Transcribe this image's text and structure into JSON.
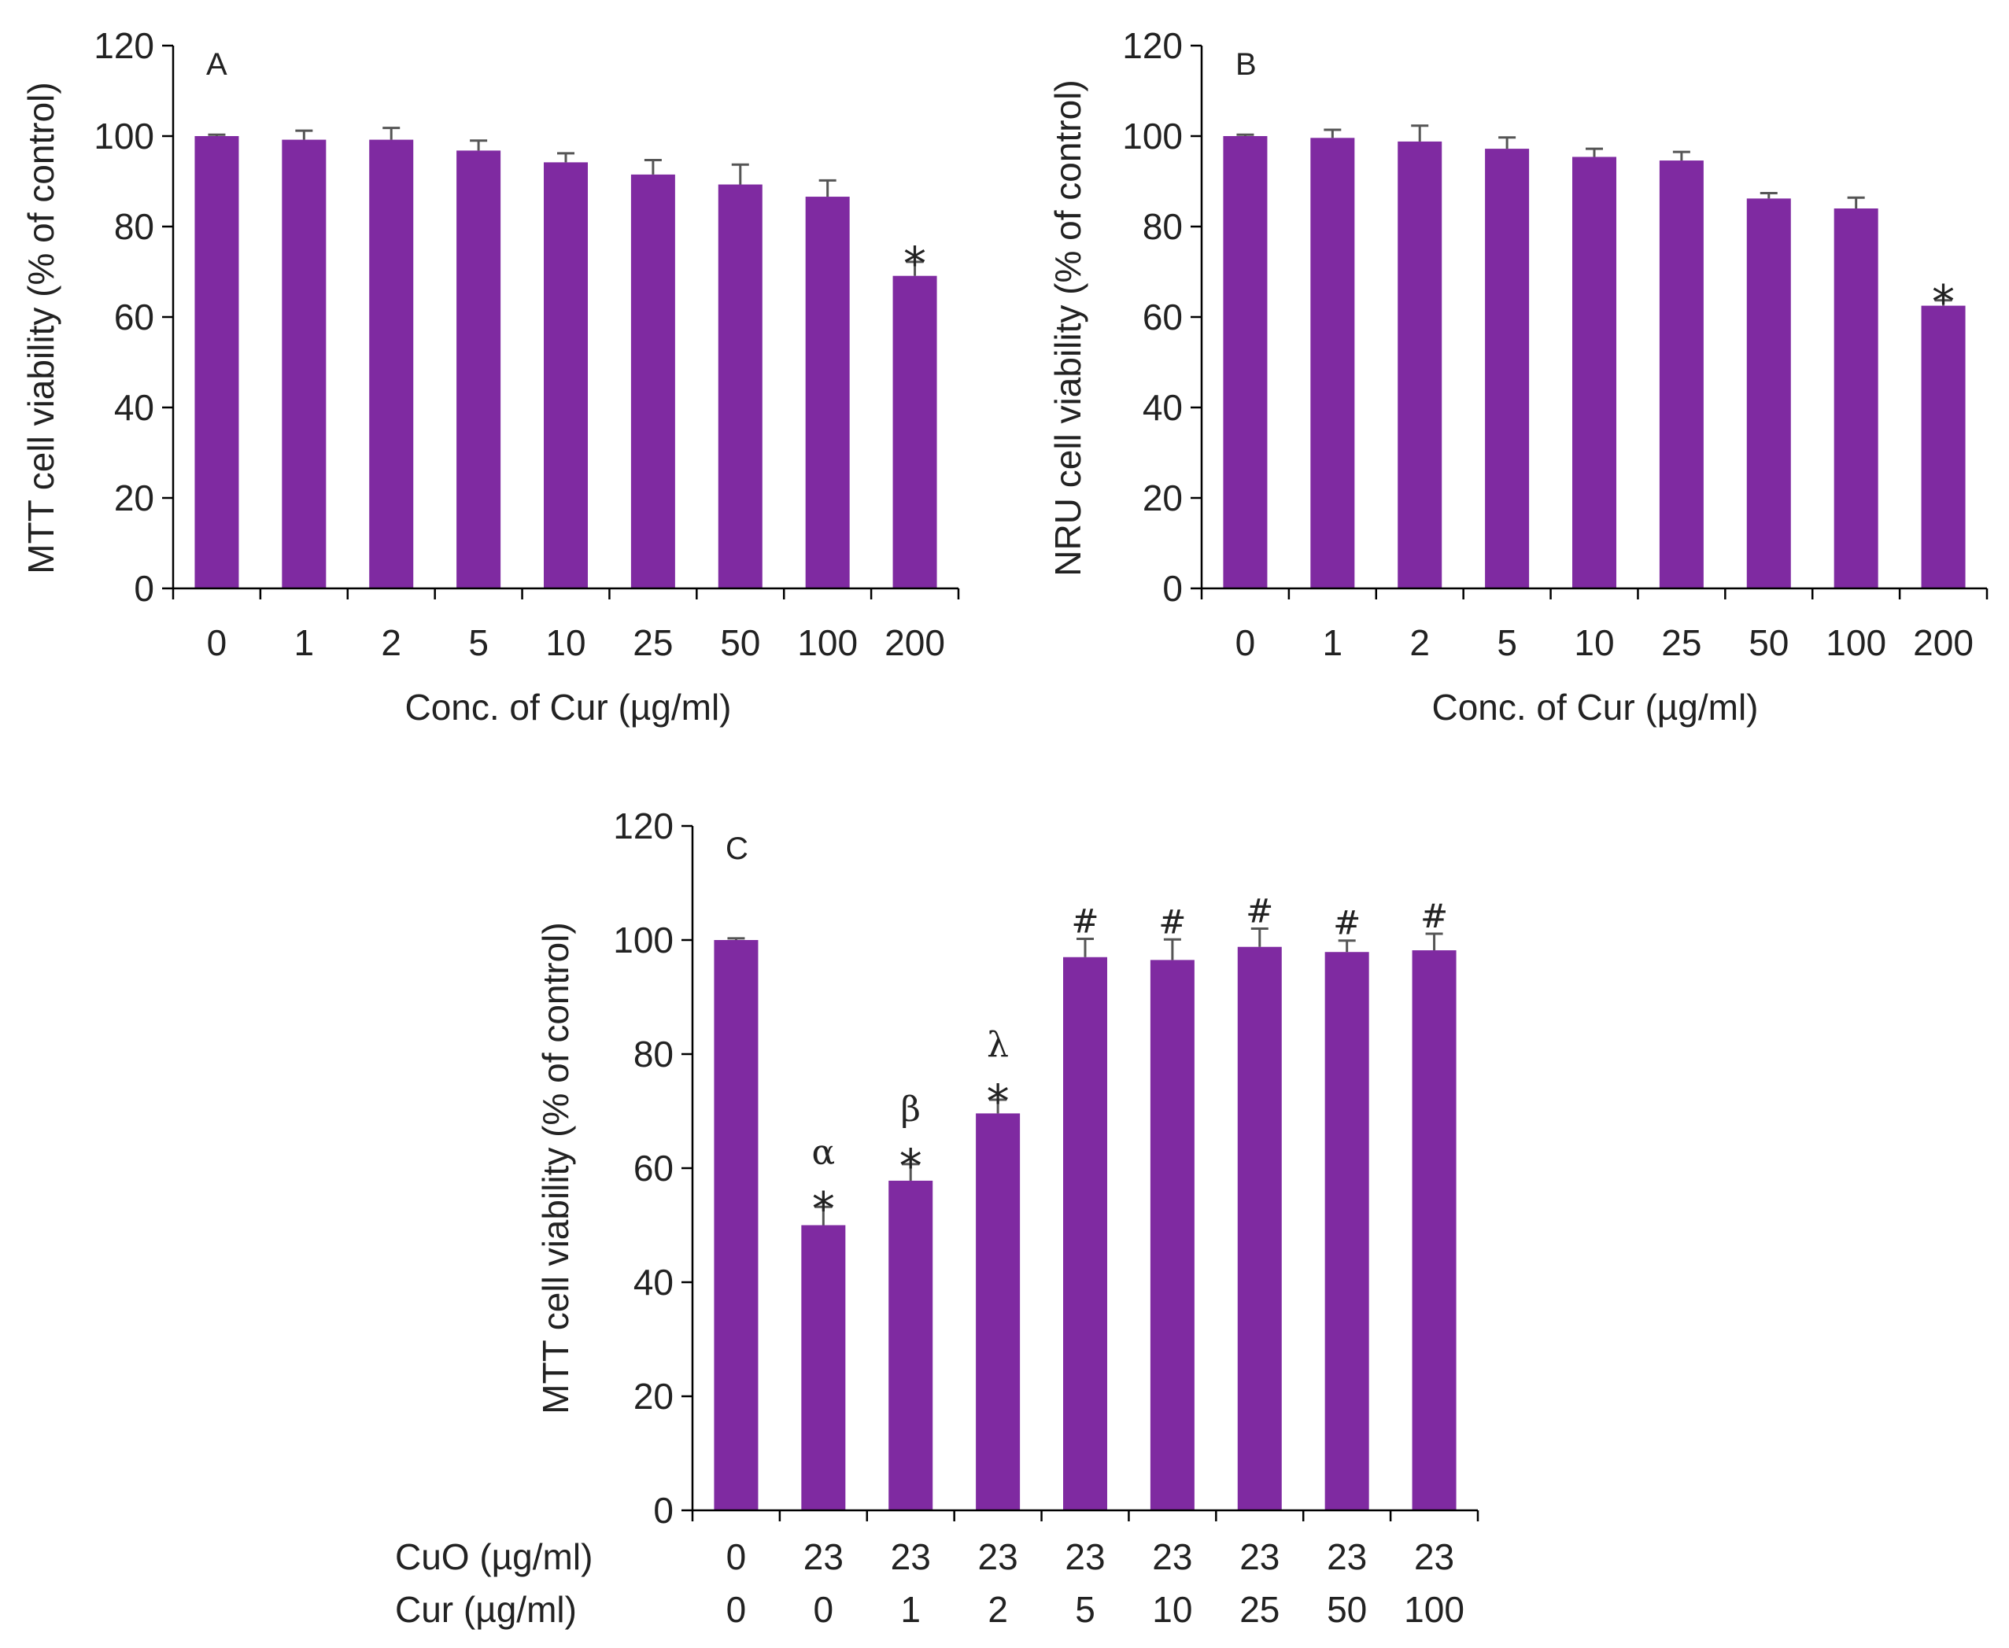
{
  "colors": {
    "bar": "#7f2aa1",
    "axis": "#000000",
    "error_bar": "#555555",
    "text": "#222222"
  },
  "chart_data": [
    {
      "panel": "A",
      "type": "bar",
      "xlabel": "Conc. of Cur (µg/ml)",
      "ylabel": "MTT cell viability (% of control)",
      "ylim": [
        0,
        120
      ],
      "yticks": [
        "0",
        "20",
        "40",
        "60",
        "80",
        "100",
        "120"
      ],
      "categories": [
        "0",
        "1",
        "2",
        "5",
        "10",
        "25",
        "50",
        "100",
        "200"
      ],
      "values": [
        100,
        99.2,
        99.2,
        96.8,
        94.2,
        91.5,
        89.3,
        86.6,
        69.1
      ],
      "errors": [
        0.3,
        2.0,
        2.6,
        2.2,
        2.0,
        3.2,
        4.4,
        3.6,
        3.1
      ],
      "markers": [
        "",
        "",
        "",
        "",
        "",
        "",
        "",
        "",
        "*"
      ]
    },
    {
      "panel": "B",
      "type": "bar",
      "xlabel": "Conc. of Cur (µg/ml)",
      "ylabel": "NRU cell viability (% of control)",
      "ylim": [
        0,
        120
      ],
      "yticks": [
        "0",
        "20",
        "40",
        "60",
        "80",
        "100",
        "120"
      ],
      "categories": [
        "0",
        "1",
        "2",
        "5",
        "10",
        "25",
        "50",
        "100",
        "200"
      ],
      "values": [
        100,
        99.6,
        98.8,
        97.2,
        95.4,
        94.6,
        86.2,
        84.0,
        62.5
      ],
      "errors": [
        0.3,
        1.8,
        3.5,
        2.5,
        1.8,
        1.9,
        1.2,
        2.4,
        1.2
      ],
      "markers": [
        "",
        "",
        "",
        "",
        "",
        "",
        "",
        "",
        "*"
      ]
    },
    {
      "panel": "C",
      "type": "bar",
      "ylabel": "MTT cell viability (% of control)",
      "ylim": [
        0,
        120
      ],
      "yticks": [
        "0",
        "20",
        "40",
        "60",
        "80",
        "100",
        "120"
      ],
      "row_labels": [
        "CuO (µg/ml)",
        "Cur (µg/ml)"
      ],
      "categories_cuo": [
        "0",
        "23",
        "23",
        "23",
        "23",
        "23",
        "23",
        "23",
        "23"
      ],
      "categories_cur": [
        "0",
        "0",
        "1",
        "2",
        "5",
        "10",
        "25",
        "50",
        "100"
      ],
      "values": [
        100,
        50,
        57.8,
        69.6,
        97,
        96.5,
        98.8,
        97.9,
        98.2
      ],
      "errors": [
        0.3,
        3.2,
        2.9,
        2.4,
        3.2,
        3.6,
        3.2,
        2.0,
        2.9
      ],
      "markers_top": [
        "",
        "α",
        "β",
        "λ",
        "#",
        "#",
        "#",
        "#",
        "#"
      ],
      "markers_star": [
        "",
        "*",
        "*",
        "*",
        "",
        "",
        "",
        "",
        ""
      ]
    }
  ]
}
